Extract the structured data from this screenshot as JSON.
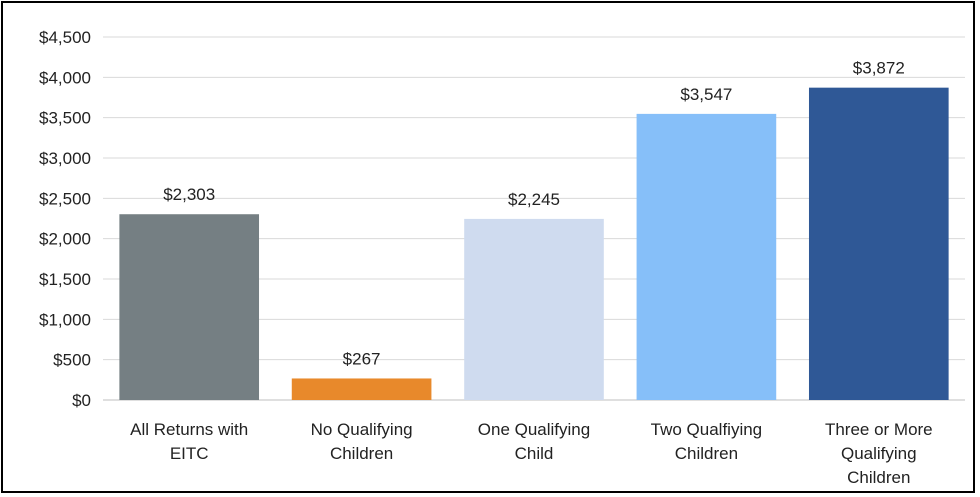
{
  "chart_data": {
    "type": "bar",
    "title": "",
    "xlabel": "",
    "ylabel": "",
    "categories": [
      [
        "All Returns with",
        "EITC"
      ],
      [
        "No Qualifying",
        "Children"
      ],
      [
        "One Qualifying",
        "Child"
      ],
      [
        "Two Qualfiying",
        "Children"
      ],
      [
        "Three or More",
        "Qualifying",
        "Children"
      ]
    ],
    "values": [
      2303,
      267,
      2245,
      3547,
      3872
    ],
    "value_labels": [
      "$2,303",
      "$267",
      "$2,245",
      "$3,547",
      "$3,872"
    ],
    "colors": [
      "#757f83",
      "#e8892b",
      "#cfdbef",
      "#86bff9",
      "#2f5896"
    ],
    "ylim": [
      0,
      4500
    ],
    "yticks": [
      0,
      500,
      1000,
      1500,
      2000,
      2500,
      3000,
      3500,
      4000,
      4500
    ],
    "ytick_labels": [
      "$0",
      "$500",
      "$1,000",
      "$1,500",
      "$2,000",
      "$2,500",
      "$3,000",
      "$3,500",
      "$4,000",
      "$4,500"
    ],
    "grid": true,
    "gridline_color": "#d9d9d9",
    "legend": "none"
  }
}
